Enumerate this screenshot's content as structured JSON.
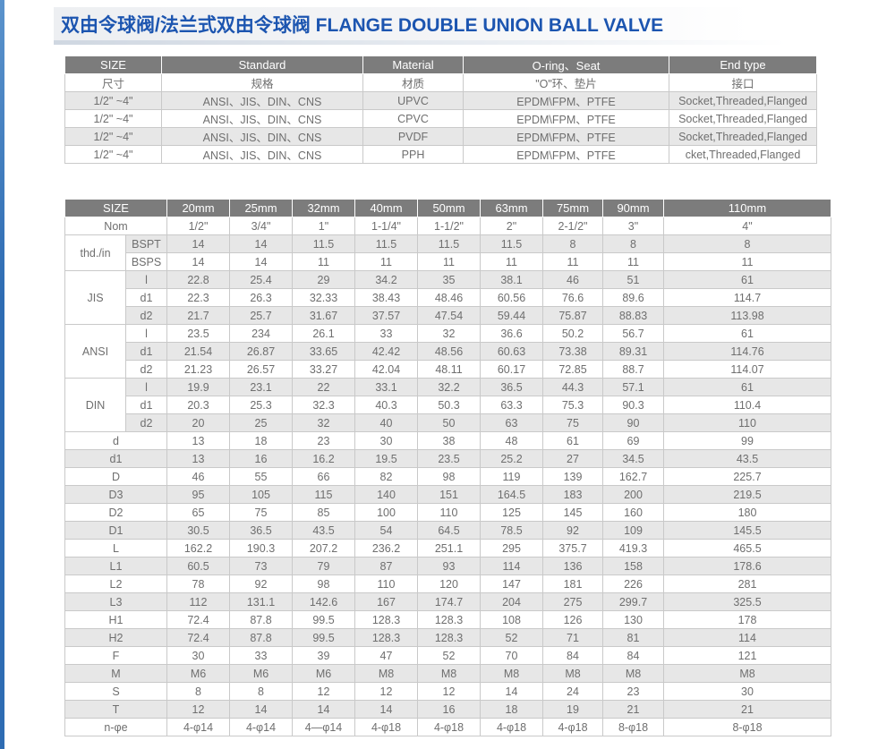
{
  "page": {
    "title": "双由令球阀/法兰式双由令球阀 FLANGE DOUBLE UNION BALL VALVE",
    "title_color": "#1c55b0",
    "accent_color": "#2e6cb3"
  },
  "colors": {
    "header_bg": "#7c7c7c",
    "stripe_bg": "#e7e7e7",
    "border": "#c9c9c9",
    "cell_text": "#6f6f6f"
  },
  "spec_table": {
    "headers_en": [
      "SIZE",
      "Standard",
      "Material",
      "O-ring、Seat",
      "End type"
    ],
    "headers_cn": [
      "尺寸",
      "规格",
      "材质",
      "\"O\"环、垫片",
      "接口"
    ],
    "rows": [
      [
        "1/2\" ~4\"",
        "ANSI、JIS、DIN、CNS",
        "UPVC",
        "EPDM\\FPM、PTFE",
        "Socket,Threaded,Flanged"
      ],
      [
        "1/2\" ~4\"",
        "ANSI、JIS、DIN、CNS",
        "CPVC",
        "EPDM\\FPM、PTFE",
        "Socket,Threaded,Flanged"
      ],
      [
        "1/2\" ~4\"",
        "ANSI、JIS、DIN、CNS",
        "PVDF",
        "EPDM\\FPM、PTFE",
        "Socket,Threaded,Flanged"
      ],
      [
        "1/2\" ~4\"",
        "ANSI、JIS、DIN、CNS",
        "PPH",
        "EPDM\\FPM、PTFE",
        "cket,Threaded,Flanged"
      ]
    ]
  },
  "dim_table": {
    "size_header": "SIZE",
    "columns": [
      "20mm",
      "25mm",
      "32mm",
      "40mm",
      "50mm",
      "63mm",
      "75mm",
      "90mm",
      "110mm"
    ],
    "rows": [
      {
        "label": "Nom",
        "span": 2,
        "values": [
          "1/2\"",
          "3/4\"",
          "1\"",
          "1-1/4\"",
          "1-1/2\"",
          "2\"",
          "2-1/2\"",
          "3\"",
          "4\""
        ]
      },
      {
        "group": "thd./in",
        "gspan": 2,
        "label": "BSPT",
        "values": [
          "14",
          "14",
          "11.5",
          "11.5",
          "11.5",
          "11.5",
          "8",
          "8",
          "8"
        ]
      },
      {
        "label": "BSPS",
        "values": [
          "14",
          "14",
          "11",
          "11",
          "11",
          "11",
          "11",
          "11",
          "11"
        ]
      },
      {
        "group": "JIS",
        "gspan": 3,
        "label": "l",
        "values": [
          "22.8",
          "25.4",
          "29",
          "34.2",
          "35",
          "38.1",
          "46",
          "51",
          "61"
        ]
      },
      {
        "label": "d1",
        "values": [
          "22.3",
          "26.3",
          "32.33",
          "38.43",
          "48.46",
          "60.56",
          "76.6",
          "89.6",
          "114.7"
        ]
      },
      {
        "label": "d2",
        "values": [
          "21.7",
          "25.7",
          "31.67",
          "37.57",
          "47.54",
          "59.44",
          "75.87",
          "88.83",
          "113.98"
        ]
      },
      {
        "group": "ANSI",
        "gspan": 3,
        "label": "l",
        "values": [
          "23.5",
          "234",
          "26.1",
          "33",
          "32",
          "36.6",
          "50.2",
          "56.7",
          "61"
        ]
      },
      {
        "label": "d1",
        "values": [
          "21.54",
          "26.87",
          "33.65",
          "42.42",
          "48.56",
          "60.63",
          "73.38",
          "89.31",
          "114.76"
        ]
      },
      {
        "label": "d2",
        "values": [
          "21.23",
          "26.57",
          "33.27",
          "42.04",
          "48.11",
          "60.17",
          "72.85",
          "88.7",
          "114.07"
        ]
      },
      {
        "group": "DIN",
        "gspan": 3,
        "label": "l",
        "values": [
          "19.9",
          "23.1",
          "22",
          "33.1",
          "32.2",
          "36.5",
          "44.3",
          "57.1",
          "61"
        ]
      },
      {
        "label": "d1",
        "values": [
          "20.3",
          "25.3",
          "32.3",
          "40.3",
          "50.3",
          "63.3",
          "75.3",
          "90.3",
          "110.4"
        ]
      },
      {
        "label": "d2",
        "values": [
          "20",
          "25",
          "32",
          "40",
          "50",
          "63",
          "75",
          "90",
          "110"
        ]
      },
      {
        "label": "d",
        "span": 2,
        "values": [
          "13",
          "18",
          "23",
          "30",
          "38",
          "48",
          "61",
          "69",
          "99"
        ]
      },
      {
        "label": "d1",
        "span": 2,
        "values": [
          "13",
          "16",
          "16.2",
          "19.5",
          "23.5",
          "25.2",
          "27",
          "34.5",
          "43.5"
        ]
      },
      {
        "label": "D",
        "span": 2,
        "values": [
          "46",
          "55",
          "66",
          "82",
          "98",
          "119",
          "139",
          "162.7",
          "225.7"
        ]
      },
      {
        "label": "D3",
        "span": 2,
        "values": [
          "95",
          "105",
          "115",
          "140",
          "151",
          "164.5",
          "183",
          "200",
          "219.5"
        ]
      },
      {
        "label": "D2",
        "span": 2,
        "values": [
          "65",
          "75",
          "85",
          "100",
          "110",
          "125",
          "145",
          "160",
          "180"
        ]
      },
      {
        "label": "D1",
        "span": 2,
        "values": [
          "30.5",
          "36.5",
          "43.5",
          "54",
          "64.5",
          "78.5",
          "92",
          "109",
          "145.5"
        ]
      },
      {
        "label": "L",
        "span": 2,
        "values": [
          "162.2",
          "190.3",
          "207.2",
          "236.2",
          "251.1",
          "295",
          "375.7",
          "419.3",
          "465.5"
        ]
      },
      {
        "label": "L1",
        "span": 2,
        "values": [
          "60.5",
          "73",
          "79",
          "87",
          "93",
          "114",
          "136",
          "158",
          "178.6"
        ]
      },
      {
        "label": "L2",
        "span": 2,
        "values": [
          "78",
          "92",
          "98",
          "110",
          "120",
          "147",
          "181",
          "226",
          "281"
        ]
      },
      {
        "label": "L3",
        "span": 2,
        "values": [
          "112",
          "131.1",
          "142.6",
          "167",
          "174.7",
          "204",
          "275",
          "299.7",
          "325.5"
        ]
      },
      {
        "label": "H1",
        "span": 2,
        "values": [
          "72.4",
          "87.8",
          "99.5",
          "128.3",
          "128.3",
          "108",
          "126",
          "130",
          "178"
        ]
      },
      {
        "label": "H2",
        "span": 2,
        "values": [
          "72.4",
          "87.8",
          "99.5",
          "128.3",
          "128.3",
          "52",
          "71",
          "81",
          "114"
        ]
      },
      {
        "label": "F",
        "span": 2,
        "values": [
          "30",
          "33",
          "39",
          "47",
          "52",
          "70",
          "84",
          "84",
          "121"
        ]
      },
      {
        "label": "M",
        "span": 2,
        "values": [
          "M6",
          "M6",
          "M6",
          "M8",
          "M8",
          "M8",
          "M8",
          "M8",
          "M8"
        ]
      },
      {
        "label": "S",
        "span": 2,
        "values": [
          "8",
          "8",
          "12",
          "12",
          "12",
          "14",
          "24",
          "23",
          "30"
        ]
      },
      {
        "label": "T",
        "span": 2,
        "values": [
          "12",
          "14",
          "14",
          "14",
          "16",
          "18",
          "19",
          "21",
          "21"
        ]
      },
      {
        "label": "n-φe",
        "span": 2,
        "values": [
          "4-φ14",
          "4-φ14",
          "4—φ14",
          "4-φ18",
          "4-φ18",
          "4-φ18",
          "4-φ18",
          "8-φ18",
          "8-φ18"
        ]
      }
    ]
  }
}
